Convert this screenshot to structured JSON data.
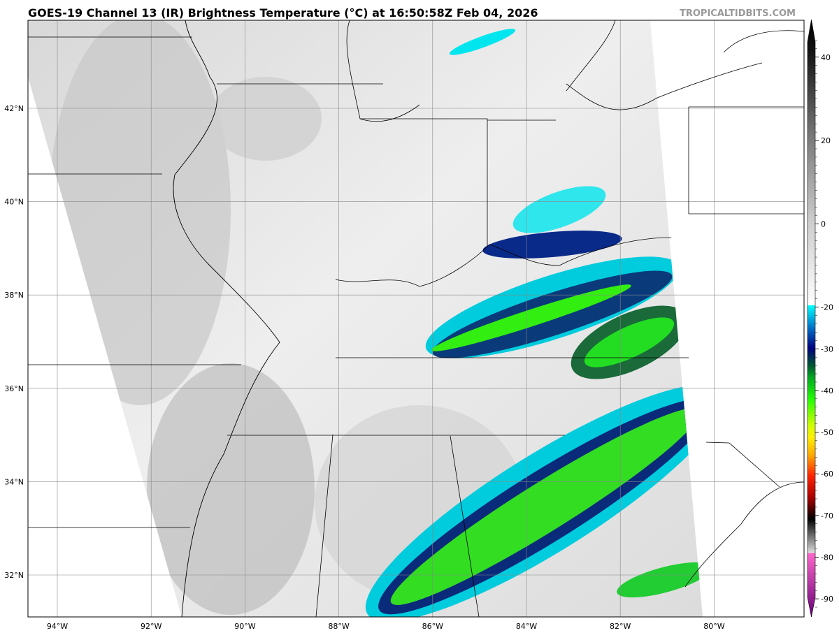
{
  "title": "GOES-19 Channel 13 (IR) Brightness Temperature (°C) at 16:50:58Z Feb 04, 2026",
  "watermark": "TROPICALTIDBITS.COM",
  "lat_labels": [
    {
      "v": 42,
      "t": "42°N"
    },
    {
      "v": 40,
      "t": "40°N"
    },
    {
      "v": 38,
      "t": "38°N"
    },
    {
      "v": 36,
      "t": "36°N"
    },
    {
      "v": 34,
      "t": "34°N"
    },
    {
      "v": 32,
      "t": "32°N"
    }
  ],
  "lon_labels": [
    {
      "v": -94,
      "t": "94°W"
    },
    {
      "v": -92,
      "t": "92°W"
    },
    {
      "v": -90,
      "t": "90°W"
    },
    {
      "v": -88,
      "t": "88°W"
    },
    {
      "v": -86,
      "t": "86°W"
    },
    {
      "v": -84,
      "t": "84°W"
    },
    {
      "v": -82,
      "t": "82°W"
    },
    {
      "v": -80,
      "t": "80°W"
    }
  ],
  "colorbar": {
    "range": [
      -93,
      47
    ],
    "ticks": [
      40,
      20,
      0,
      -20,
      -30,
      -40,
      -50,
      -60,
      -70,
      -80,
      -90
    ],
    "stops": [
      {
        "v": 47,
        "c": "#000000"
      },
      {
        "v": 40,
        "c": "#111111"
      },
      {
        "v": 20,
        "c": "#777777"
      },
      {
        "v": 0,
        "c": "#cccccc"
      },
      {
        "v": -20,
        "c": "#ffffff"
      },
      {
        "v": -20.01,
        "c": "#00ffff"
      },
      {
        "v": -25,
        "c": "#0077cc"
      },
      {
        "v": -30,
        "c": "#000080"
      },
      {
        "v": -34,
        "c": "#005533"
      },
      {
        "v": -37,
        "c": "#00aa22"
      },
      {
        "v": -42,
        "c": "#22ff00"
      },
      {
        "v": -48,
        "c": "#ccff00"
      },
      {
        "v": -51,
        "c": "#ffee00"
      },
      {
        "v": -55,
        "c": "#ffaa00"
      },
      {
        "v": -60,
        "c": "#ff2200"
      },
      {
        "v": -65,
        "c": "#aa0000"
      },
      {
        "v": -70,
        "c": "#000000"
      },
      {
        "v": -78,
        "c": "#dddddd"
      },
      {
        "v": -78.01,
        "c": "#ff66cc"
      },
      {
        "v": -93,
        "c": "#660077"
      }
    ]
  }
}
